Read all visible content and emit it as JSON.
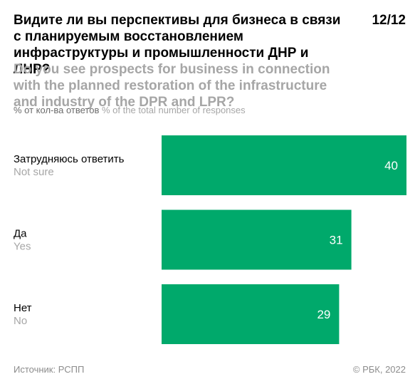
{
  "title_ru": "Видите ли вы перспективы для бизнеса в связи с планируемым восстановлением инфраструктуры и промышленности ДНР и ЛНР?",
  "title_en": "Do you see prospects for business in connection with the planned restoration of the infrastructure and industry of the DPR and LPR?",
  "page_indicator": "12/12",
  "units_ru": "% от кол-ва ответов",
  "units_en": "% of the total number of responses",
  "source": "Источник: РСПП",
  "copyright": "© РБК, 2022",
  "colors": {
    "bar": "#00a96b",
    "label_ru": "#000000",
    "label_en": "#a6a6a6"
  },
  "chart_data": {
    "type": "bar",
    "orientation": "horizontal",
    "categories": [
      {
        "ru": "Затрудняюсь ответить",
        "en": "Not sure"
      },
      {
        "ru": "Да",
        "en": "Yes"
      },
      {
        "ru": "Нет",
        "en": "No"
      }
    ],
    "values": [
      40,
      31,
      29
    ],
    "xlim": [
      0,
      40
    ],
    "grid": false,
    "data_labels": true
  }
}
